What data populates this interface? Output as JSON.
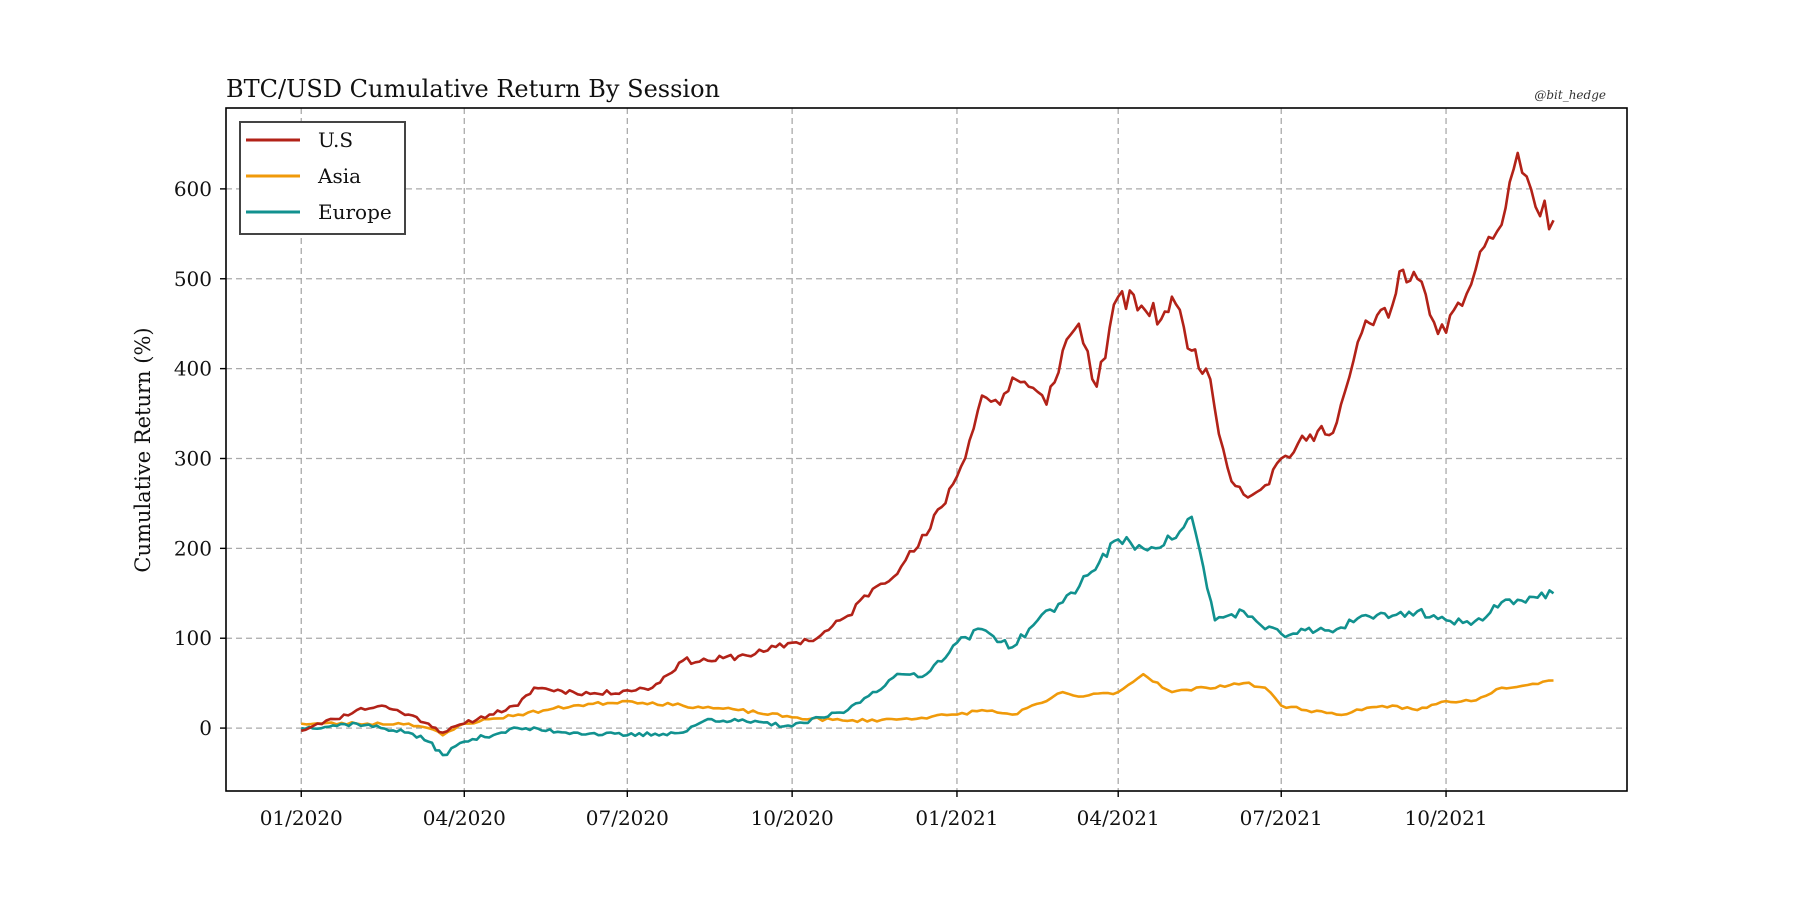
{
  "chart_data": {
    "type": "line",
    "title": "BTC/USD Cumulative Return By Session",
    "watermark": "@bit_hedge",
    "xlabel": "",
    "ylabel": "Cumulative Return (%)",
    "x_range": [
      "2019-11-20",
      "2022-01-10"
    ],
    "ylim": [
      -70,
      690
    ],
    "x_ticks": [
      {
        "date": "2020-01-01",
        "label": "01/2020"
      },
      {
        "date": "2020-04-01",
        "label": "04/2020"
      },
      {
        "date": "2020-07-01",
        "label": "07/2020"
      },
      {
        "date": "2020-10-01",
        "label": "10/2020"
      },
      {
        "date": "2021-01-01",
        "label": "01/2021"
      },
      {
        "date": "2021-04-01",
        "label": "04/2021"
      },
      {
        "date": "2021-07-01",
        "label": "07/2021"
      },
      {
        "date": "2021-10-01",
        "label": "10/2021"
      }
    ],
    "y_ticks": [
      0,
      100,
      200,
      300,
      400,
      500,
      600
    ],
    "grid": true,
    "legend_position": "top-left",
    "series": [
      {
        "name": "U.S",
        "color": "#B22218",
        "x": [
          "2020-01-01",
          "2020-01-10",
          "2020-01-20",
          "2020-02-01",
          "2020-02-15",
          "2020-03-01",
          "2020-03-12",
          "2020-03-20",
          "2020-04-01",
          "2020-04-15",
          "2020-05-01",
          "2020-05-10",
          "2020-06-01",
          "2020-06-15",
          "2020-07-01",
          "2020-07-15",
          "2020-08-01",
          "2020-08-15",
          "2020-09-01",
          "2020-09-15",
          "2020-10-01",
          "2020-10-15",
          "2020-11-01",
          "2020-11-15",
          "2020-12-01",
          "2020-12-15",
          "2021-01-01",
          "2021-01-08",
          "2021-01-15",
          "2021-01-25",
          "2021-02-01",
          "2021-02-10",
          "2021-02-20",
          "2021-03-01",
          "2021-03-10",
          "2021-03-20",
          "2021-04-01",
          "2021-04-14",
          "2021-04-25",
          "2021-05-01",
          "2021-05-12",
          "2021-05-20",
          "2021-06-01",
          "2021-06-10",
          "2021-06-22",
          "2021-07-01",
          "2021-07-15",
          "2021-08-01",
          "2021-08-15",
          "2021-09-01",
          "2021-09-07",
          "2021-09-15",
          "2021-09-22",
          "2021-10-01",
          "2021-10-10",
          "2021-10-20",
          "2021-11-01",
          "2021-11-10",
          "2021-11-20",
          "2021-11-30"
        ],
        "y": [
          -3,
          5,
          10,
          20,
          25,
          15,
          5,
          -5,
          5,
          15,
          25,
          45,
          40,
          38,
          42,
          45,
          75,
          75,
          80,
          85,
          95,
          100,
          125,
          155,
          180,
          215,
          280,
          320,
          370,
          360,
          390,
          380,
          360,
          420,
          450,
          380,
          480,
          470,
          455,
          480,
          420,
          400,
          290,
          260,
          270,
          300,
          320,
          340,
          440,
          470,
          510,
          500,
          460,
          440,
          470,
          530,
          560,
          640,
          580,
          565
        ]
      },
      {
        "name": "Asia",
        "color": "#F09A0A",
        "x": [
          "2020-01-01",
          "2020-02-01",
          "2020-03-01",
          "2020-03-12",
          "2020-03-20",
          "2020-04-01",
          "2020-05-01",
          "2020-06-01",
          "2020-07-01",
          "2020-08-01",
          "2020-09-01",
          "2020-10-01",
          "2020-11-01",
          "2020-12-01",
          "2021-01-01",
          "2021-01-15",
          "2021-02-01",
          "2021-02-20",
          "2021-03-01",
          "2021-03-10",
          "2021-04-01",
          "2021-04-15",
          "2021-05-01",
          "2021-05-20",
          "2021-06-10",
          "2021-06-22",
          "2021-07-01",
          "2021-08-01",
          "2021-08-15",
          "2021-09-01",
          "2021-09-15",
          "2021-10-01",
          "2021-10-15",
          "2021-11-01",
          "2021-11-30"
        ],
        "y": [
          5,
          5,
          5,
          0,
          -8,
          5,
          15,
          25,
          30,
          25,
          20,
          12,
          8,
          10,
          15,
          20,
          15,
          30,
          40,
          35,
          40,
          60,
          40,
          45,
          50,
          45,
          25,
          15,
          20,
          25,
          20,
          30,
          30,
          45,
          53
        ]
      },
      {
        "name": "Europe",
        "color": "#11918F",
        "x": [
          "2020-01-01",
          "2020-02-01",
          "2020-03-01",
          "2020-03-12",
          "2020-03-20",
          "2020-04-01",
          "2020-05-01",
          "2020-06-01",
          "2020-07-01",
          "2020-08-01",
          "2020-08-15",
          "2020-09-01",
          "2020-10-01",
          "2020-11-01",
          "2020-11-15",
          "2020-12-01",
          "2020-12-15",
          "2021-01-01",
          "2021-01-15",
          "2021-02-01",
          "2021-02-15",
          "2021-03-01",
          "2021-03-15",
          "2021-04-01",
          "2021-04-15",
          "2021-05-01",
          "2021-05-12",
          "2021-05-25",
          "2021-06-01",
          "2021-06-10",
          "2021-06-22",
          "2021-07-01",
          "2021-08-01",
          "2021-08-15",
          "2021-09-01",
          "2021-09-15",
          "2021-10-01",
          "2021-10-15",
          "2021-11-01",
          "2021-11-30"
        ],
        "y": [
          0,
          5,
          -5,
          -15,
          -30,
          -15,
          0,
          -5,
          -8,
          -5,
          10,
          8,
          2,
          20,
          40,
          60,
          60,
          95,
          110,
          90,
          120,
          140,
          170,
          210,
          200,
          210,
          235,
          120,
          125,
          130,
          110,
          105,
          110,
          125,
          125,
          130,
          120,
          115,
          140,
          150
        ]
      }
    ]
  }
}
